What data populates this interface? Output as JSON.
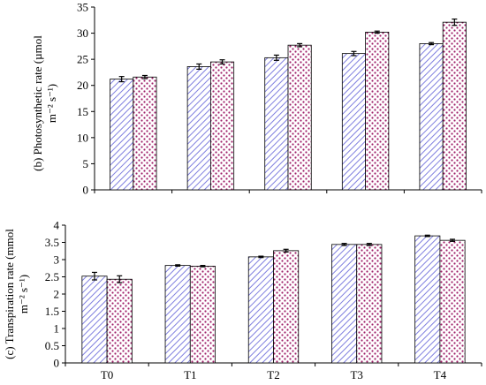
{
  "chart_data": [
    {
      "type": "bar",
      "ylabel_lines": [
        "(b) Photosynthetic rate (µmol",
        "m⁻² s⁻¹)"
      ],
      "categories": [
        "T0",
        "T1",
        "T2",
        "T3",
        "T4"
      ],
      "ylim": [
        0,
        35
      ],
      "yticks": [
        0,
        5,
        10,
        15,
        20,
        25,
        30,
        35
      ],
      "series": [
        {
          "pattern": "hatch",
          "color": "#7f7fdf",
          "values": [
            21.2,
            23.6,
            25.3,
            26.1,
            28.0
          ],
          "errors": [
            0.5,
            0.5,
            0.5,
            0.4,
            0.2
          ]
        },
        {
          "pattern": "dots",
          "color": "#a0206a",
          "values": [
            21.6,
            24.5,
            27.7,
            30.2,
            32.1
          ],
          "errors": [
            0.3,
            0.4,
            0.3,
            0.2,
            0.6
          ]
        }
      ],
      "grid": false
    },
    {
      "type": "bar",
      "ylabel_lines": [
        "(c) Transpiration rate (mmol",
        "m⁻² s⁻¹)"
      ],
      "categories": [
        "T0",
        "T1",
        "T2",
        "T3",
        "T4"
      ],
      "ylim": [
        0,
        4
      ],
      "yticks": [
        0,
        0.5,
        1,
        1.5,
        2,
        2.5,
        3,
        3.5,
        4
      ],
      "series": [
        {
          "pattern": "hatch",
          "color": "#7f7fdf",
          "values": [
            2.52,
            2.83,
            3.08,
            3.44,
            3.69
          ],
          "errors": [
            0.11,
            0.02,
            0.02,
            0.03,
            0.02
          ]
        },
        {
          "pattern": "dots",
          "color": "#a0206a",
          "values": [
            2.43,
            2.81,
            3.26,
            3.44,
            3.56
          ],
          "errors": [
            0.1,
            0.02,
            0.04,
            0.03,
            0.03
          ]
        }
      ],
      "grid": false
    }
  ]
}
